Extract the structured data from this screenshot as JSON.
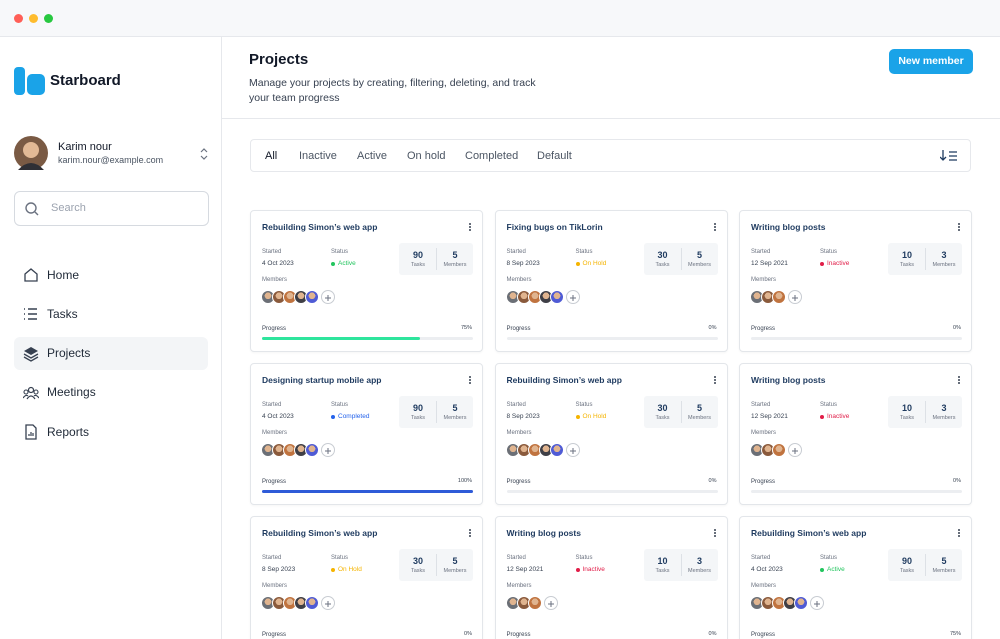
{
  "sidebar": {
    "brand": "Starboard",
    "user": {
      "name": "Karim nour",
      "email": "karim.nour@example.com"
    },
    "search_placeholder": "Search",
    "nav": [
      "Home",
      "Tasks",
      "Projects",
      "Meetings",
      "Reports"
    ],
    "active_nav": 2
  },
  "header": {
    "title": "Projects",
    "description": "Manage your projects by creating, filtering, deleting, and track your team progress",
    "button": "New member"
  },
  "filters": {
    "tabs": [
      "All",
      "Inactive",
      "Active",
      "On hold",
      "Completed",
      "Default"
    ],
    "active": 0
  },
  "labels": {
    "started": "Started",
    "status": "Status",
    "tasks": "Tasks",
    "members": "Members",
    "progress": "Progress"
  },
  "cards": [
    {
      "title": "Rebuilding Simon’s web app",
      "started": "4 Oct 2023",
      "status": "Active",
      "status_color": "#22c55e",
      "tasks": 90,
      "members": 5,
      "progress": 75,
      "progress_label": "75%",
      "bar_color": "#2ee59d"
    },
    {
      "title": "Fixing bugs on TikLorin",
      "started": "8 Sep 2023",
      "status": "On Hold",
      "status_color": "#f5b400",
      "tasks": 30,
      "members": 5,
      "progress": 0,
      "progress_label": "0%",
      "bar_color": "#2ee59d"
    },
    {
      "title": "Writing blog posts",
      "started": "12 Sep 2021",
      "status": "Inactive",
      "status_color": "#e11d48",
      "tasks": 10,
      "members": 3,
      "progress": 0,
      "progress_label": "0%",
      "bar_color": "#2ee59d"
    },
    {
      "title": "Designing startup mobile app",
      "started": "4 Oct 2023",
      "status": "Completed",
      "status_color": "#2563eb",
      "tasks": 90,
      "members": 5,
      "progress": 100,
      "progress_label": "100%",
      "bar_color": "#2f5bd8"
    },
    {
      "title": "Rebuilding Simon’s web app",
      "started": "8 Sep 2023",
      "status": "On Hold",
      "status_color": "#f5b400",
      "tasks": 30,
      "members": 5,
      "progress": 0,
      "progress_label": "0%",
      "bar_color": "#2ee59d"
    },
    {
      "title": "Writing blog posts",
      "started": "12 Sep 2021",
      "status": "Inactive",
      "status_color": "#e11d48",
      "tasks": 10,
      "members": 3,
      "progress": 0,
      "progress_label": "0%",
      "bar_color": "#2ee59d"
    },
    {
      "title": "Rebuilding Simon’s web app",
      "started": "8 Sep 2023",
      "status": "On Hold",
      "status_color": "#f5b400",
      "tasks": 30,
      "members": 5,
      "progress": 0,
      "progress_label": "0%",
      "bar_color": "#2ee59d"
    },
    {
      "title": "Writing blog posts",
      "started": "12 Sep 2021",
      "status": "Inactive",
      "status_color": "#e11d48",
      "tasks": 10,
      "members": 3,
      "progress": 0,
      "progress_label": "0%",
      "bar_color": "#2ee59d"
    },
    {
      "title": "Rebuilding Simon’s web app",
      "started": "4 Oct 2023",
      "status": "Active",
      "status_color": "#22c55e",
      "tasks": 90,
      "members": 5,
      "progress": 75,
      "progress_label": "75%",
      "bar_color": "#2ee59d"
    }
  ]
}
